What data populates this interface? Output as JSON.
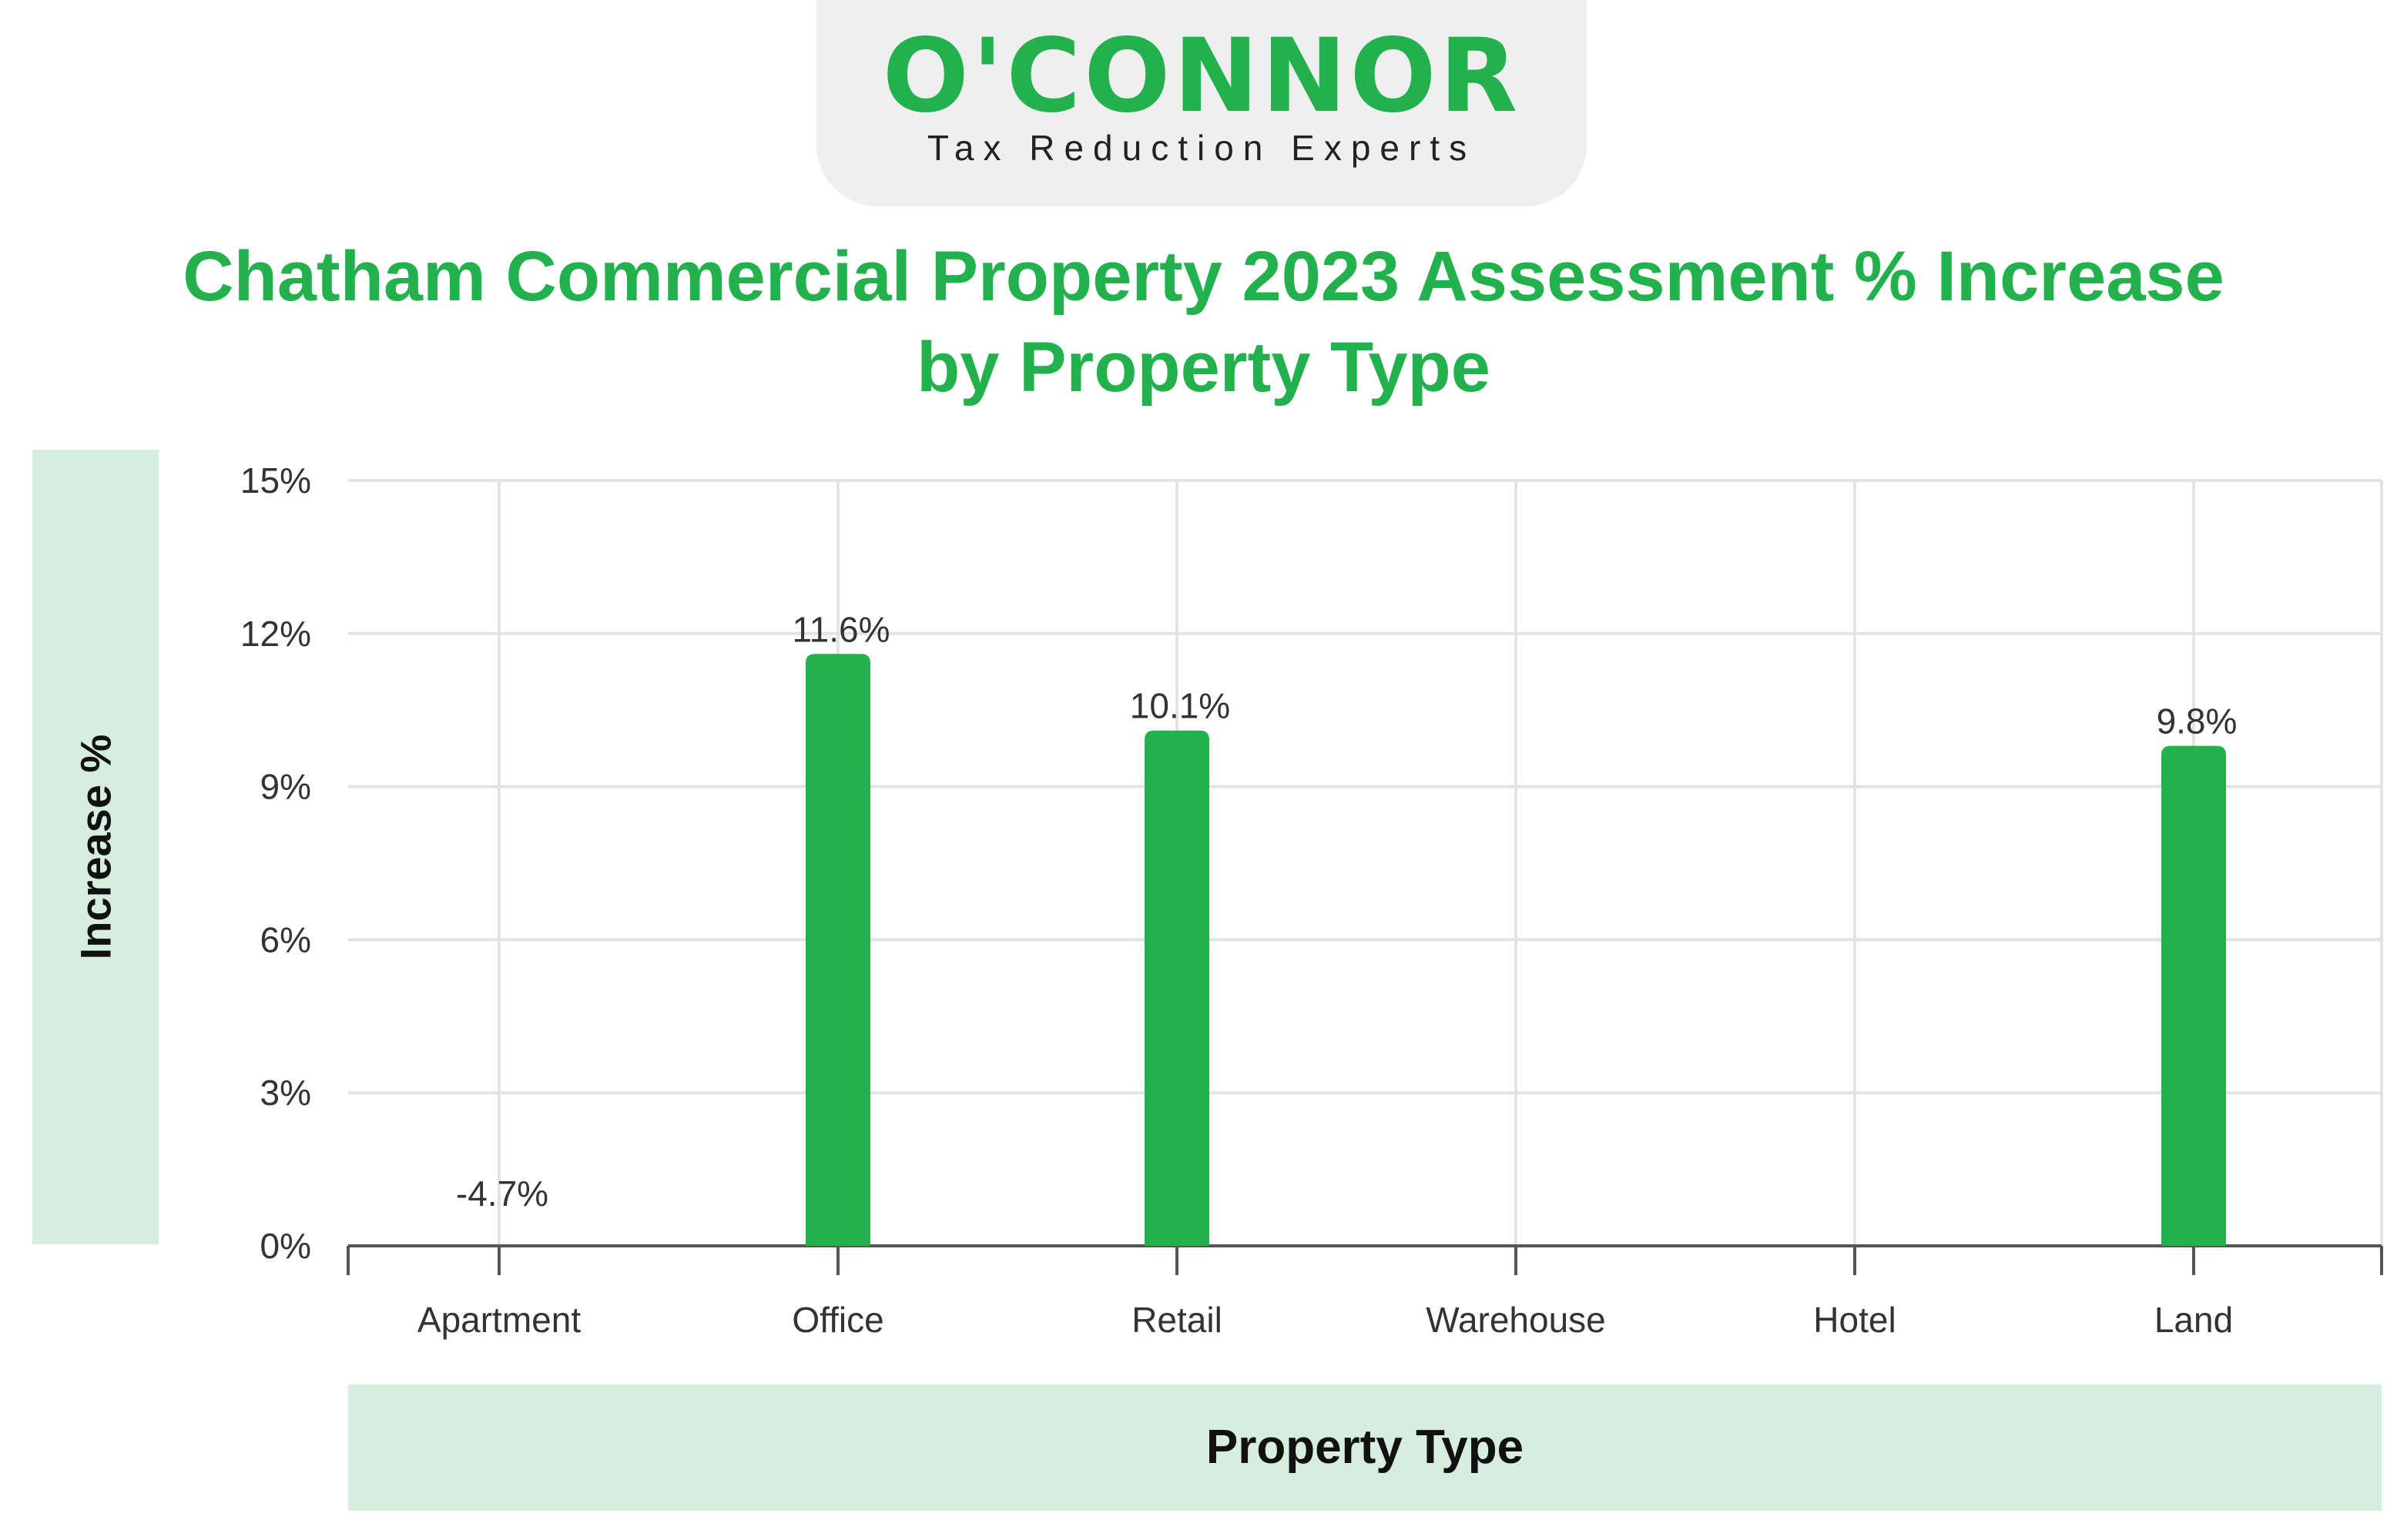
{
  "logo": {
    "wordmark": "O'CONNOR",
    "tagline": "Tax Reduction Experts"
  },
  "colors": {
    "brand": "#22b14c",
    "label_box": "#d5eedd",
    "grid": "#e3e3e3",
    "axis": "#555555"
  },
  "chart_data": {
    "type": "bar",
    "title": "Chatham Commercial Property 2023 Assessment % Increase by Property Type",
    "xlabel": "Property Type",
    "ylabel": "Increase %",
    "categories": [
      "Apartment",
      "Office",
      "Retail",
      "Warehouse",
      "Hotel",
      "Land"
    ],
    "values": [
      -4.7,
      11.6,
      10.1,
      null,
      null,
      9.8
    ],
    "data_labels": [
      "-4.7%",
      "11.6%",
      "10.1%",
      "",
      "",
      "9.8%"
    ],
    "ylim": [
      0,
      15
    ],
    "yticks": [
      0,
      3,
      6,
      9,
      12,
      15
    ],
    "ytick_labels": [
      "0%",
      "3%",
      "6%",
      "9%",
      "12%",
      "15%"
    ],
    "grid": true,
    "legend": "none"
  }
}
